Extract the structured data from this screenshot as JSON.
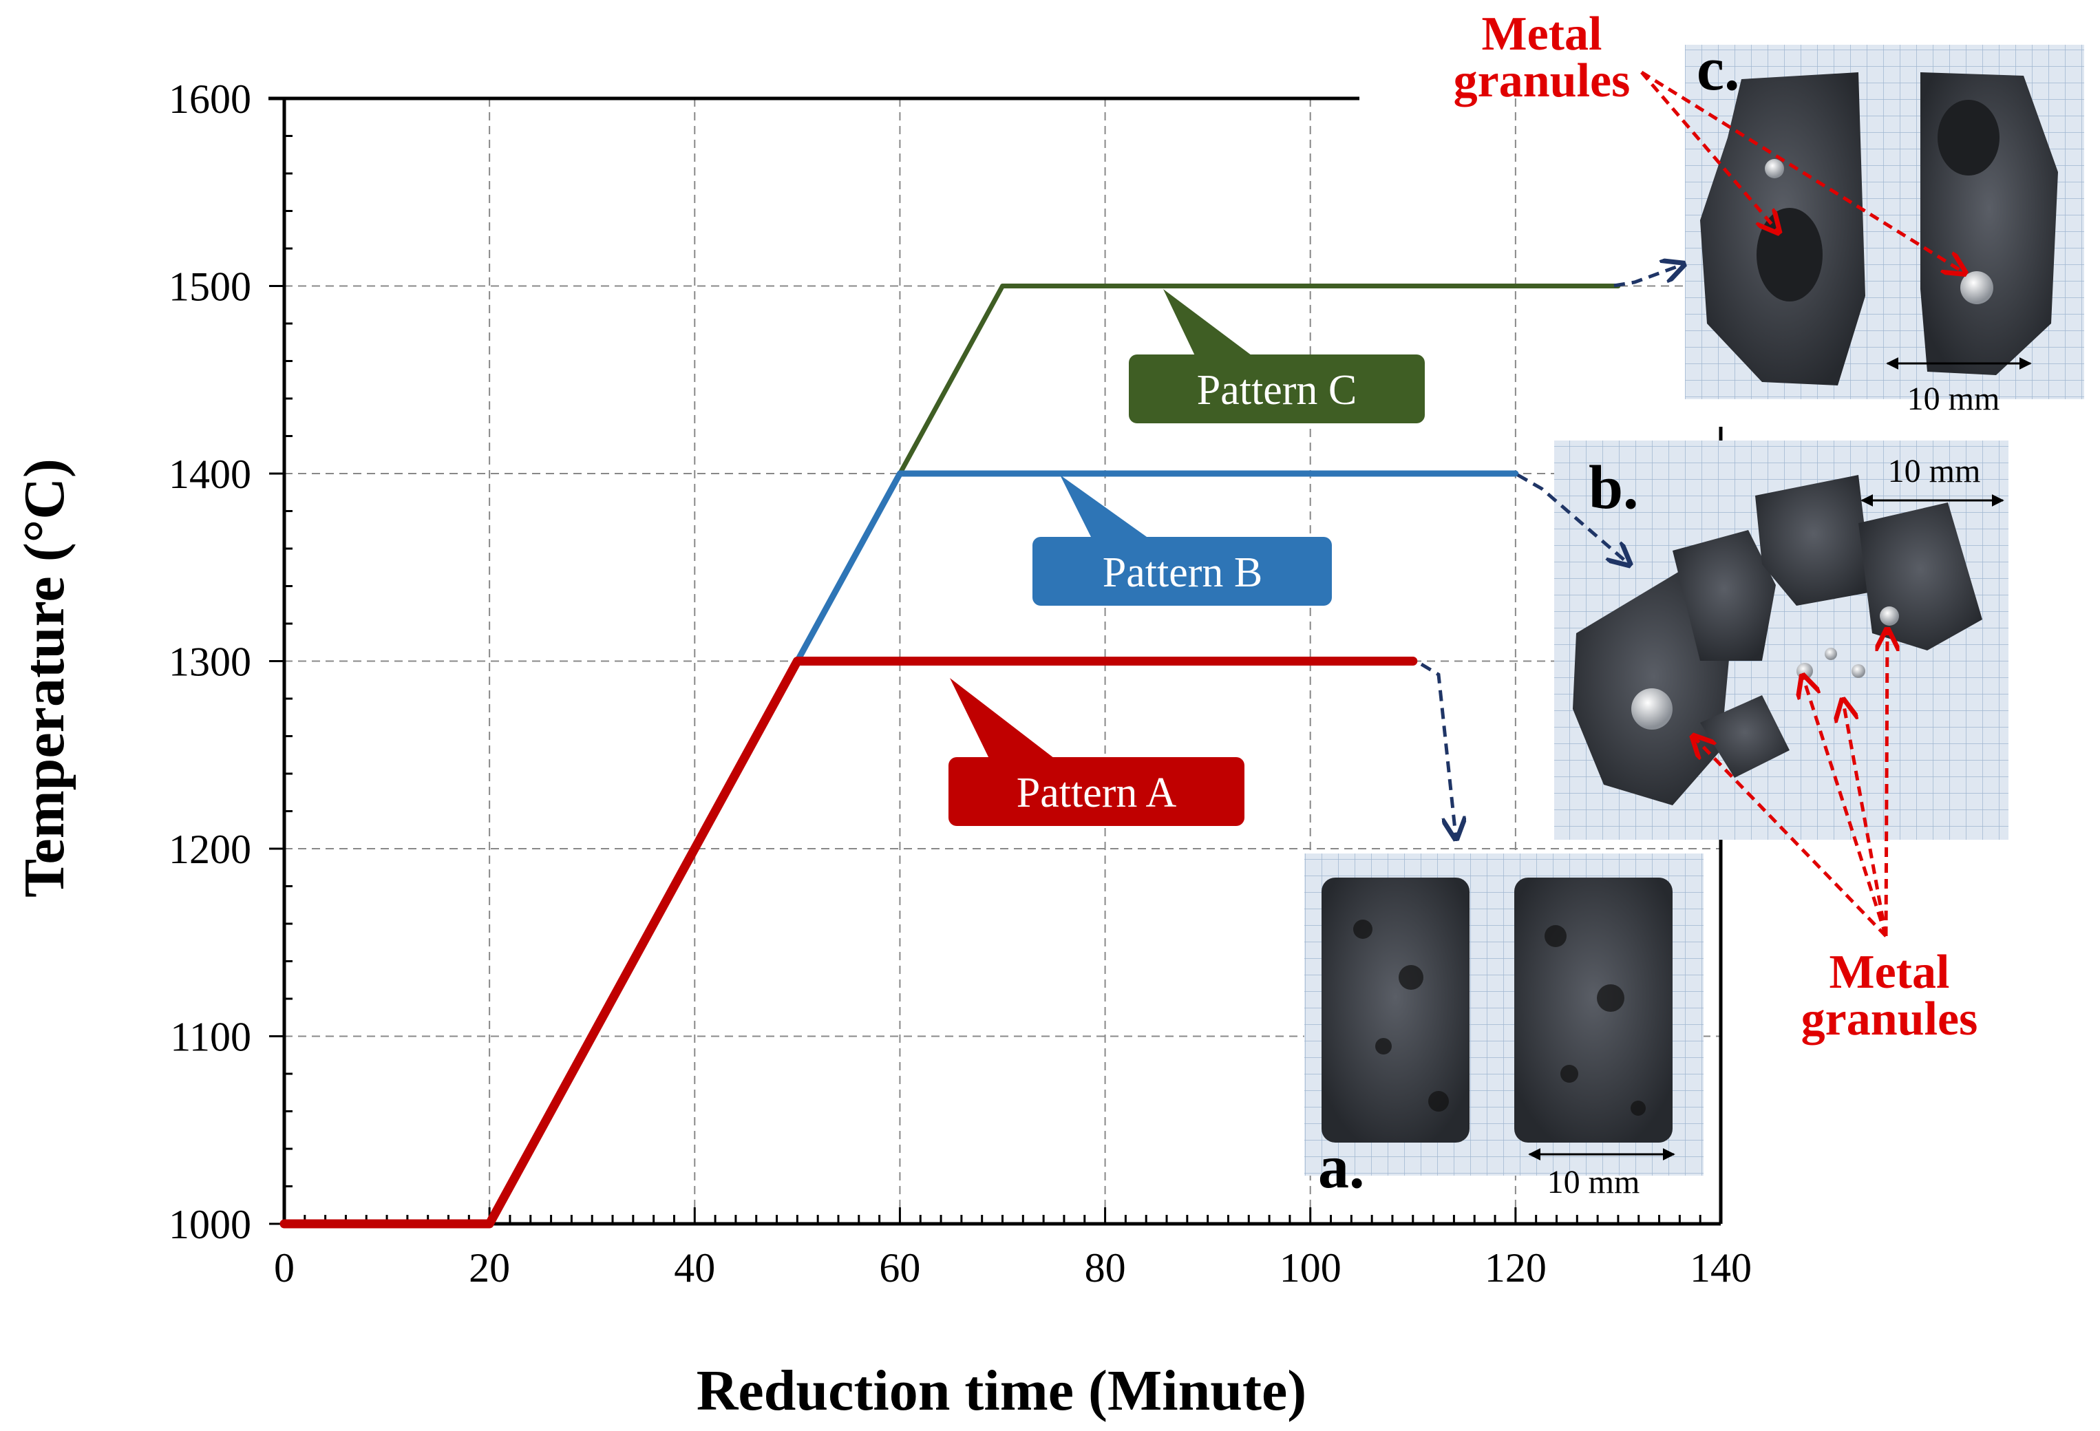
{
  "chart_data": {
    "type": "line",
    "xlabel": "Reduction time (Minute)",
    "ylabel": "Temperature (°C)",
    "xlim": [
      0,
      140
    ],
    "ylim": [
      1000,
      1600
    ],
    "xticks": [
      "0",
      "20",
      "40",
      "60",
      "80",
      "100",
      "120",
      "140"
    ],
    "yticks": [
      "1000",
      "1100",
      "1200",
      "1300",
      "1400",
      "1500",
      "1600"
    ],
    "grid": true,
    "series": [
      {
        "name": "Pattern A",
        "color": "#c00000",
        "x": [
          0,
          20,
          50,
          110
        ],
        "y": [
          1000,
          1000,
          1300,
          1300
        ]
      },
      {
        "name": "Pattern B",
        "color": "#2e75b6",
        "x": [
          0,
          20,
          60,
          120
        ],
        "y": [
          1000,
          1000,
          1400,
          1400
        ]
      },
      {
        "name": "Pattern C",
        "color": "#3f5e24",
        "x": [
          0,
          20,
          70,
          130
        ],
        "y": [
          1000,
          1000,
          1500,
          1500
        ]
      }
    ]
  },
  "annotations": {
    "metal_granules_line1": "Metal",
    "metal_granules_line2": "granules",
    "photo_a_letter": "a.",
    "photo_b_letter": "b.",
    "photo_c_letter": "c.",
    "scale_text": "10 mm"
  }
}
